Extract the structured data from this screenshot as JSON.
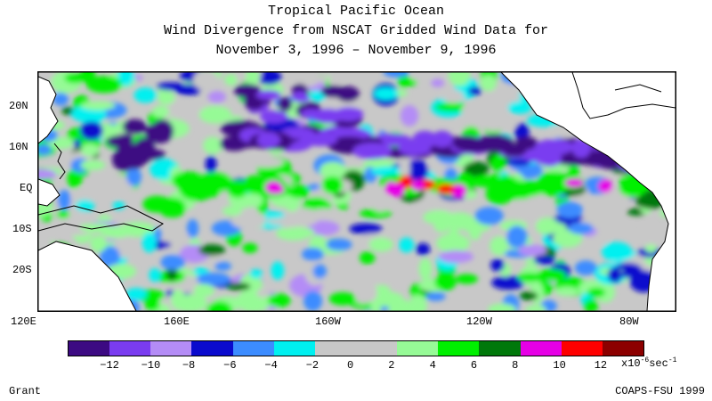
{
  "title": {
    "line1": "Tropical Pacific Ocean",
    "line2": "Wind Divergence from NSCAT Gridded Wind Data for",
    "line3": "November 3, 1996 – November 9, 1996"
  },
  "axes": {
    "lat_labels": [
      "20N",
      "10N",
      "EQ",
      "10S",
      "20S"
    ],
    "lon_labels": [
      "120E",
      "160E",
      "160W",
      "120W",
      "80W"
    ]
  },
  "colorbar": {
    "colors": [
      "#3c0a82",
      "#7a3cf0",
      "#b48cf6",
      "#0a0acd",
      "#3c8cff",
      "#00f0f0",
      "#c8c8c8",
      "#c8c8c8",
      "#96fa96",
      "#00f000",
      "#00780a",
      "#e600e6",
      "#ff0000",
      "#8c0000"
    ],
    "labels": [
      "−12",
      "−10",
      "−8",
      "−6",
      "−4",
      "−2",
      "0",
      "2",
      "4",
      "6",
      "8",
      "10",
      "12"
    ],
    "units_prefix": "x10",
    "units_exp": "-6",
    "units_suffix": "sec",
    "units_exp2": "-1"
  },
  "credits": {
    "left": "Grant",
    "right": "COAPS-FSU 1999"
  }
}
